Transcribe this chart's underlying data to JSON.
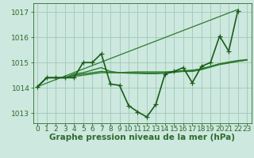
{
  "x": [
    0,
    1,
    2,
    3,
    4,
    5,
    6,
    7,
    8,
    9,
    10,
    11,
    12,
    13,
    14,
    15,
    16,
    17,
    18,
    19,
    20,
    21,
    22,
    23
  ],
  "series_smooth1": {
    "y": [
      1014.05,
      1014.4,
      1014.4,
      1014.4,
      1014.45,
      1014.5,
      1014.55,
      1014.6,
      1014.6,
      1014.6,
      1014.62,
      1014.63,
      1014.63,
      1014.63,
      1014.63,
      1014.65,
      1014.68,
      1014.7,
      1014.75,
      1014.85,
      1014.95,
      1015.0,
      1015.05,
      1015.1
    ],
    "color": "#2d7a2d",
    "linewidth": 1.0,
    "linestyle": "-"
  },
  "series_smooth2": {
    "y": [
      1014.05,
      1014.4,
      1014.4,
      1014.4,
      1014.5,
      1014.55,
      1014.6,
      1014.65,
      1014.62,
      1014.6,
      1014.6,
      1014.6,
      1014.58,
      1014.58,
      1014.6,
      1014.62,
      1014.65,
      1014.65,
      1014.72,
      1014.82,
      1014.92,
      1014.98,
      1015.05,
      1015.1
    ],
    "color": "#2d7a2d",
    "linewidth": 1.0,
    "linestyle": "-"
  },
  "series_smooth3": {
    "y": [
      1014.05,
      1014.4,
      1014.4,
      1014.4,
      1014.55,
      1014.6,
      1014.7,
      1014.8,
      1014.65,
      1014.6,
      1014.58,
      1014.57,
      1014.56,
      1014.56,
      1014.58,
      1014.62,
      1014.67,
      1014.67,
      1014.75,
      1014.85,
      1014.95,
      1015.02,
      1015.08,
      1015.12
    ],
    "color": "#2d7a2d",
    "linewidth": 1.0,
    "linestyle": "-"
  },
  "series_main": {
    "y": [
      1014.05,
      1014.4,
      1014.4,
      1014.4,
      1014.4,
      1015.0,
      1015.0,
      1015.35,
      1014.15,
      1014.1,
      1013.3,
      1013.05,
      1012.85,
      1013.35,
      1014.55,
      1014.65,
      1014.8,
      1014.2,
      1014.85,
      1015.0,
      1016.05,
      1015.45,
      1017.05,
      null
    ],
    "color": "#1a5c1a",
    "linewidth": 1.2,
    "linestyle": "-",
    "marker": "+"
  },
  "series_straight": {
    "x": [
      0,
      22
    ],
    "y": [
      1014.05,
      1017.1
    ],
    "color": "#2d7a2d",
    "linewidth": 0.9,
    "linestyle": "-"
  },
  "background_color": "#cde8de",
  "grid_color": "#9fc8b8",
  "axis_color": "#2d6a2d",
  "xlabel": "Graphe pression niveau de la mer (hPa)",
  "xlabel_fontsize": 7.5,
  "xlabel_fontweight": "bold",
  "ylim": [
    1012.6,
    1017.35
  ],
  "yticks": [
    1013,
    1014,
    1015,
    1016,
    1017
  ],
  "xticks": [
    0,
    1,
    2,
    3,
    4,
    5,
    6,
    7,
    8,
    9,
    10,
    11,
    12,
    13,
    14,
    15,
    16,
    17,
    18,
    19,
    20,
    21,
    22,
    23
  ],
  "tick_fontsize": 6.5
}
